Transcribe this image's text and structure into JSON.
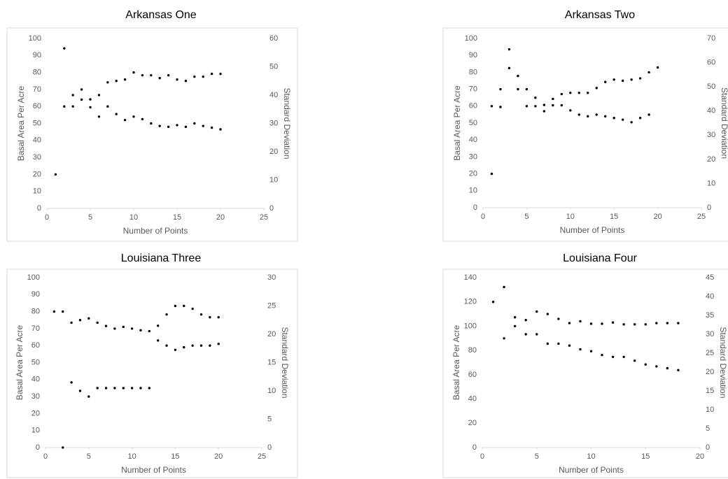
{
  "chart_data": [
    {
      "type": "scatter",
      "title": "Arkansas One",
      "x_label": "Number of Points",
      "y_label": "Basal Area Per Acre",
      "y2_label": "Standard Deviation",
      "x": [
        1,
        2,
        3,
        4,
        5,
        6,
        7,
        8,
        9,
        10,
        11,
        12,
        13,
        14,
        15,
        16,
        17,
        18,
        19,
        20
      ],
      "series": [
        {
          "color": "#000000",
          "values": [
            20,
            60,
            60,
            64,
            59.5,
            54,
            60,
            55.5,
            52,
            54,
            52.5,
            50,
            48.5,
            48,
            49,
            48,
            50,
            48.5,
            47.5,
            46.5
          ]
        },
        {
          "color": "#000000",
          "axis": "y2",
          "values": [
            null,
            56.5,
            40,
            42,
            38.5,
            40,
            44.5,
            45,
            45.5,
            48,
            47,
            47,
            46,
            47,
            45.5,
            45,
            46.5,
            46.5,
            47.5,
            47.5
          ]
        }
      ],
      "xlim": [
        0,
        25
      ],
      "xticks": [
        0,
        5,
        10,
        15,
        20,
        25
      ],
      "ylim": [
        0,
        100
      ],
      "yticks": [
        0,
        10,
        20,
        30,
        40,
        50,
        60,
        70,
        80,
        90,
        100
      ],
      "y2lim": [
        0,
        60
      ],
      "y2ticks": [
        0,
        10,
        20,
        30,
        40,
        50,
        60
      ]
    },
    {
      "type": "scatter",
      "title": "Arkansas Two",
      "x_label": "Number of Points",
      "y_label": "Basal Area Per Acre",
      "y2_label": "Standard Deviation",
      "x": [
        1,
        2,
        3,
        4,
        5,
        6,
        7,
        8,
        9,
        10,
        11,
        12,
        13,
        14,
        15,
        16,
        17,
        18,
        19,
        20
      ],
      "series": [
        {
          "color": "#000000",
          "values": [
            20,
            59.5,
            82.5,
            70,
            60,
            60,
            57,
            60.5,
            60.5,
            57.5,
            55,
            54,
            55,
            54,
            53,
            52,
            50.5,
            53,
            55,
            null
          ]
        },
        {
          "color": "#000000",
          "axis": "y2",
          "values": [
            42,
            49,
            65.5,
            54.5,
            49,
            45.5,
            42.5,
            45,
            47,
            47.5,
            47.5,
            47.5,
            49.5,
            52,
            53,
            52.5,
            53,
            53.5,
            56,
            58
          ]
        }
      ],
      "xlim": [
        0,
        25
      ],
      "xticks": [
        0,
        5,
        10,
        15,
        20,
        25
      ],
      "ylim": [
        0,
        100
      ],
      "yticks": [
        0,
        10,
        20,
        30,
        40,
        50,
        60,
        70,
        80,
        90,
        100
      ],
      "y2lim": [
        0,
        70
      ],
      "y2ticks": [
        0,
        10,
        20,
        30,
        40,
        50,
        60,
        70
      ]
    },
    {
      "type": "scatter",
      "title": "Louisiana Three",
      "x_label": "Number of Points",
      "y_label": "Basal Area Per Acre",
      "y2_label": "Standard Deviation",
      "x": [
        1,
        2,
        3,
        4,
        5,
        6,
        7,
        8,
        9,
        10,
        11,
        12,
        13,
        14,
        15,
        16,
        17,
        18,
        19,
        20
      ],
      "series": [
        {
          "color": "#000000",
          "values": [
            80,
            80,
            73.5,
            75,
            76,
            73.5,
            71.5,
            70,
            71,
            70,
            69,
            68.5,
            63,
            60,
            57.5,
            59,
            60,
            60,
            60,
            61
          ]
        },
        {
          "color": "#000000",
          "axis": "y2",
          "values": [
            null,
            0,
            11.5,
            10,
            9,
            10.5,
            10.5,
            10.5,
            10.5,
            10.5,
            10.5,
            10.5,
            21.5,
            23.5,
            25,
            25,
            24.5,
            23.5,
            23,
            23
          ]
        }
      ],
      "xlim": [
        0,
        25
      ],
      "xticks": [
        0,
        5,
        10,
        15,
        20,
        25
      ],
      "ylim": [
        0,
        100
      ],
      "yticks": [
        0,
        10,
        20,
        30,
        40,
        50,
        60,
        70,
        80,
        90,
        100
      ],
      "y2lim": [
        0,
        30
      ],
      "y2ticks": [
        0,
        5,
        10,
        15,
        20,
        25,
        30
      ]
    },
    {
      "type": "scatter",
      "title": "Louisiana Four",
      "x_label": "Number of Points",
      "y_label": "Basal Area Per Acre",
      "y2_label": "Standard Deviation",
      "x": [
        1,
        2,
        3,
        4,
        5,
        6,
        7,
        8,
        9,
        10,
        11,
        12,
        13,
        14,
        15,
        16,
        17,
        18
      ],
      "series": [
        {
          "color": "#000000",
          "values": [
            120,
            90,
            100,
            105,
            112,
            110,
            106,
            102.5,
            104,
            102,
            102,
            103,
            101.5,
            101.5,
            101.5,
            102.5,
            102.5,
            102.5
          ]
        },
        {
          "color": "#000000",
          "axis": "y2",
          "values": [
            null,
            42.5,
            34.5,
            30,
            30,
            27.5,
            27.5,
            27,
            26,
            25.5,
            24.5,
            24,
            24,
            23,
            22,
            21.5,
            21,
            20.5
          ]
        }
      ],
      "xlim": [
        0,
        20
      ],
      "xticks": [
        0,
        5,
        10,
        15,
        20
      ],
      "ylim": [
        0,
        140
      ],
      "yticks": [
        0,
        20,
        40,
        60,
        80,
        100,
        120,
        140
      ],
      "y2lim": [
        0,
        45
      ],
      "y2ticks": [
        0,
        5,
        10,
        15,
        20,
        25,
        30,
        35,
        40,
        45
      ]
    }
  ]
}
